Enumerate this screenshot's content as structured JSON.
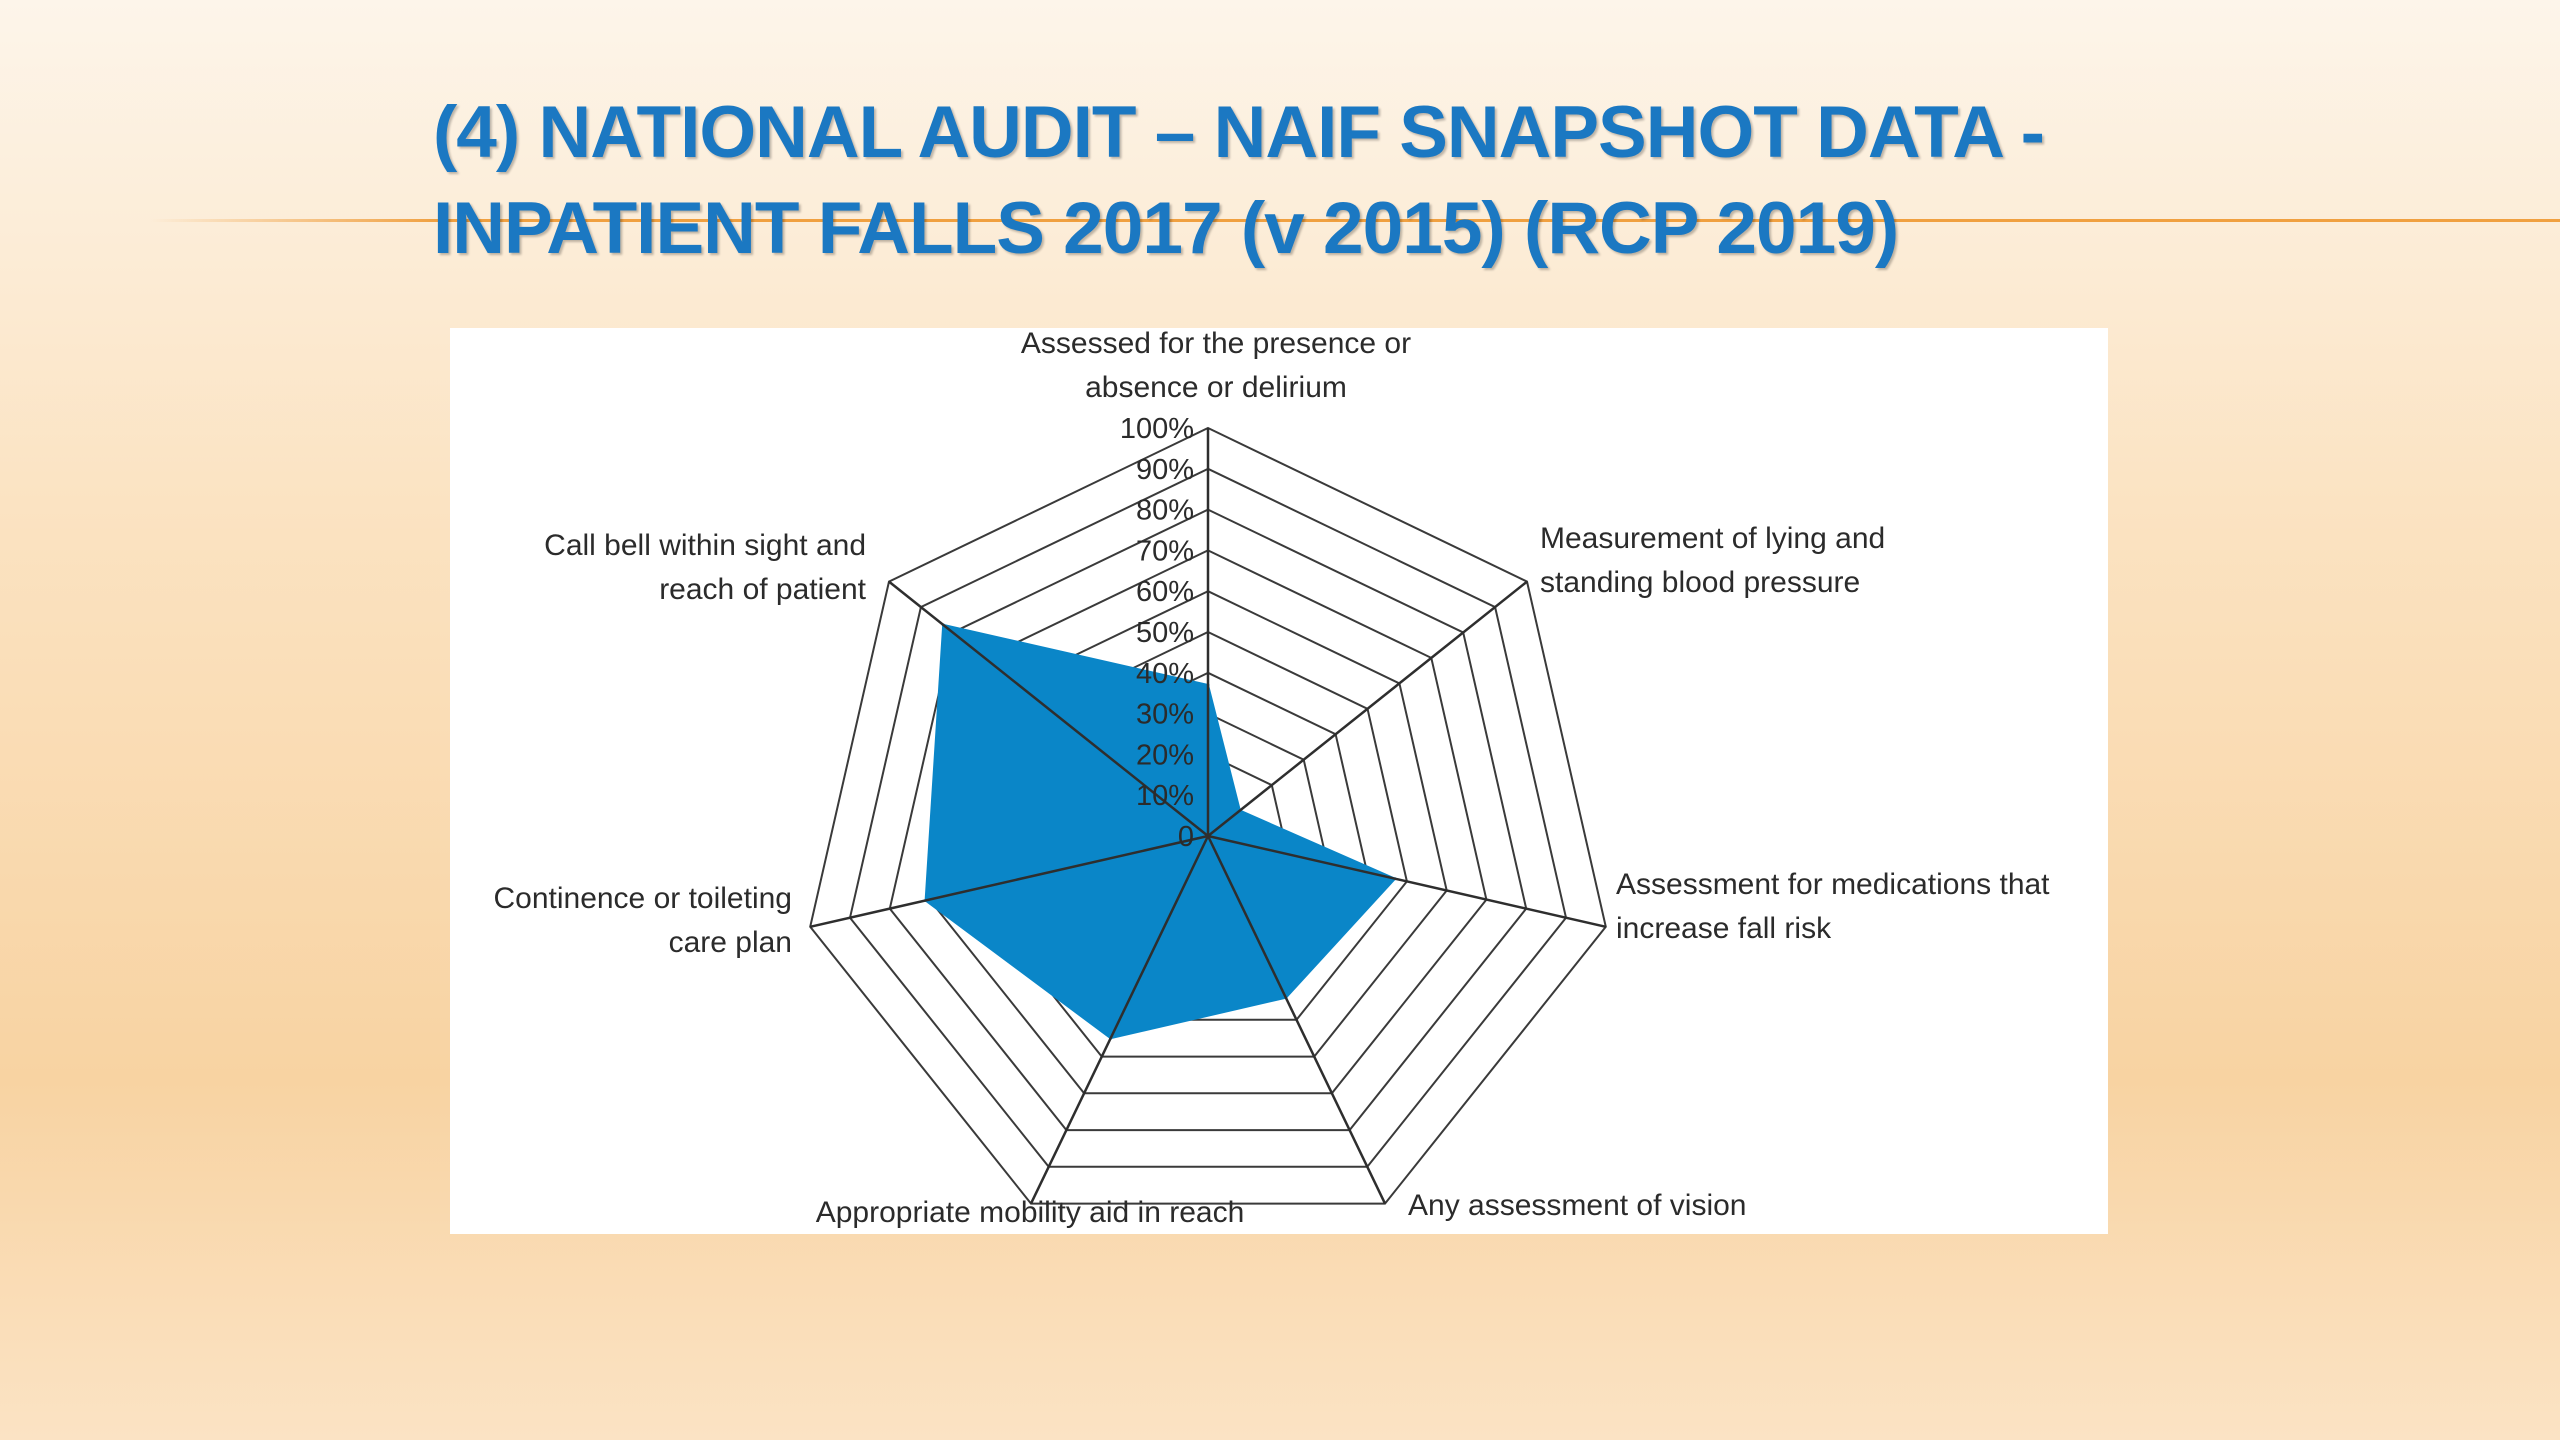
{
  "slide": {
    "title_line1": "(4) NATIONAL AUDIT – NAIF SNAPSHOT DATA  -",
    "title_line2": "INPATIENT FALLS 2017 (v 2015) (RCP 2019)",
    "accent_color": "#f0a040",
    "title_color": "#1b78c2"
  },
  "chart_data": {
    "type": "radar",
    "title": "",
    "categories": [
      [
        "Assessed for the presence or",
        "absence or delirium"
      ],
      [
        "Measurement of lying and",
        "standing blood pressure"
      ],
      [
        "Assessment for medications that",
        "increase fall risk"
      ],
      [
        "Any assessment of vision"
      ],
      [
        "Appropriate mobility aid in reach"
      ],
      [
        "Continence or toileting",
        "care plan"
      ],
      [
        "Call bell within sight and",
        "reach of patient"
      ]
    ],
    "series": [
      {
        "values": [
          37,
          10,
          47,
          44,
          55,
          71,
          83
        ],
        "color": "#0a86c8"
      }
    ],
    "rlim": [
      0,
      100
    ],
    "ticks": [
      "0",
      "10%",
      "20%",
      "30%",
      "40%",
      "50%",
      "60%",
      "70%",
      "80%",
      "90%",
      "100%"
    ],
    "grid": true,
    "legend": "none"
  }
}
